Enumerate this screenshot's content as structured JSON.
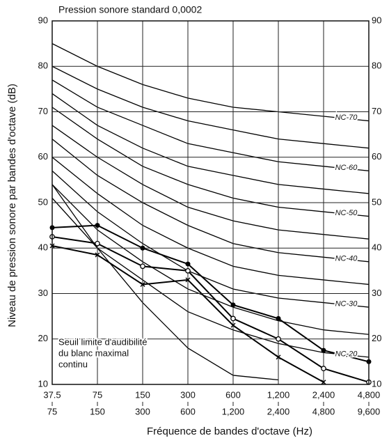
{
  "chart_data": {
    "type": "line",
    "title": "Pression sonore standard 0,0002",
    "y_label": "Niveau de pression sonore par bandes d'octave (dB)",
    "x_label": "Fréquence de bandes d'octave (Hz)",
    "categories": [
      [
        "37.5",
        "75"
      ],
      [
        "75",
        "150"
      ],
      [
        "150",
        "300"
      ],
      [
        "300",
        "600"
      ],
      [
        "600",
        "1,200"
      ],
      [
        "1,200",
        "2,400"
      ],
      [
        "2,400",
        "4,800"
      ],
      [
        "4,800",
        "9,600"
      ]
    ],
    "ylim": [
      10,
      90
    ],
    "yticks": [
      10,
      20,
      30,
      40,
      50,
      60,
      70,
      80,
      90
    ],
    "grid": true,
    "annotation": [
      "Seuil limite d'audibilité",
      "du blanc maximal",
      "continu"
    ],
    "curves": [
      {
        "name": "NC-70",
        "color": "#000000",
        "values": [
          85,
          80,
          76,
          73,
          71,
          70,
          69,
          68
        ]
      },
      {
        "color": "#000000",
        "values": [
          80,
          75,
          71,
          68,
          66,
          64,
          63,
          62
        ]
      },
      {
        "name": "NC-60",
        "color": "#000000",
        "values": [
          77,
          71,
          67,
          63,
          61,
          59,
          58,
          57
        ]
      },
      {
        "color": "#000000",
        "values": [
          74,
          67,
          62,
          58,
          56,
          54,
          53,
          52
        ]
      },
      {
        "name": "NC-50",
        "color": "#000000",
        "values": [
          71,
          64,
          58,
          54,
          51,
          49,
          48,
          47
        ]
      },
      {
        "color": "#000000",
        "values": [
          67,
          60,
          54,
          49,
          46,
          44,
          43,
          42
        ]
      },
      {
        "name": "NC-40",
        "color": "#000000",
        "values": [
          64,
          56,
          50,
          45,
          41,
          39,
          38,
          37
        ]
      },
      {
        "color": "#000000",
        "values": [
          60,
          52,
          45,
          40,
          36,
          34,
          33,
          32
        ]
      },
      {
        "name": "NC-30",
        "color": "#000000",
        "values": [
          57,
          48,
          41,
          35,
          31,
          29,
          28,
          27
        ]
      },
      {
        "color": "#000000",
        "values": [
          54,
          44,
          37,
          31,
          27,
          24,
          22,
          21
        ]
      },
      {
        "name": "NC-20",
        "color": "#000000",
        "values": [
          51,
          40,
          33,
          26,
          22,
          19,
          17,
          16
        ]
      }
    ],
    "series": [
      {
        "marker": "filled-circle",
        "color": "#000000",
        "values": [
          44.5,
          45,
          40,
          36.5,
          27.5,
          24.5,
          17.5,
          15
        ]
      },
      {
        "marker": "open-circle",
        "color": "#000000",
        "values": [
          42.5,
          41,
          36,
          35,
          24.5,
          20,
          13.5,
          10.5
        ]
      },
      {
        "marker": "cross",
        "color": "#000000",
        "values": [
          40.5,
          38.5,
          32,
          33,
          23,
          16,
          10.5,
          null
        ]
      },
      {
        "marker": "none",
        "color": "#000000",
        "values": [
          54,
          40,
          28,
          18,
          12,
          11,
          null,
          null
        ]
      }
    ]
  }
}
